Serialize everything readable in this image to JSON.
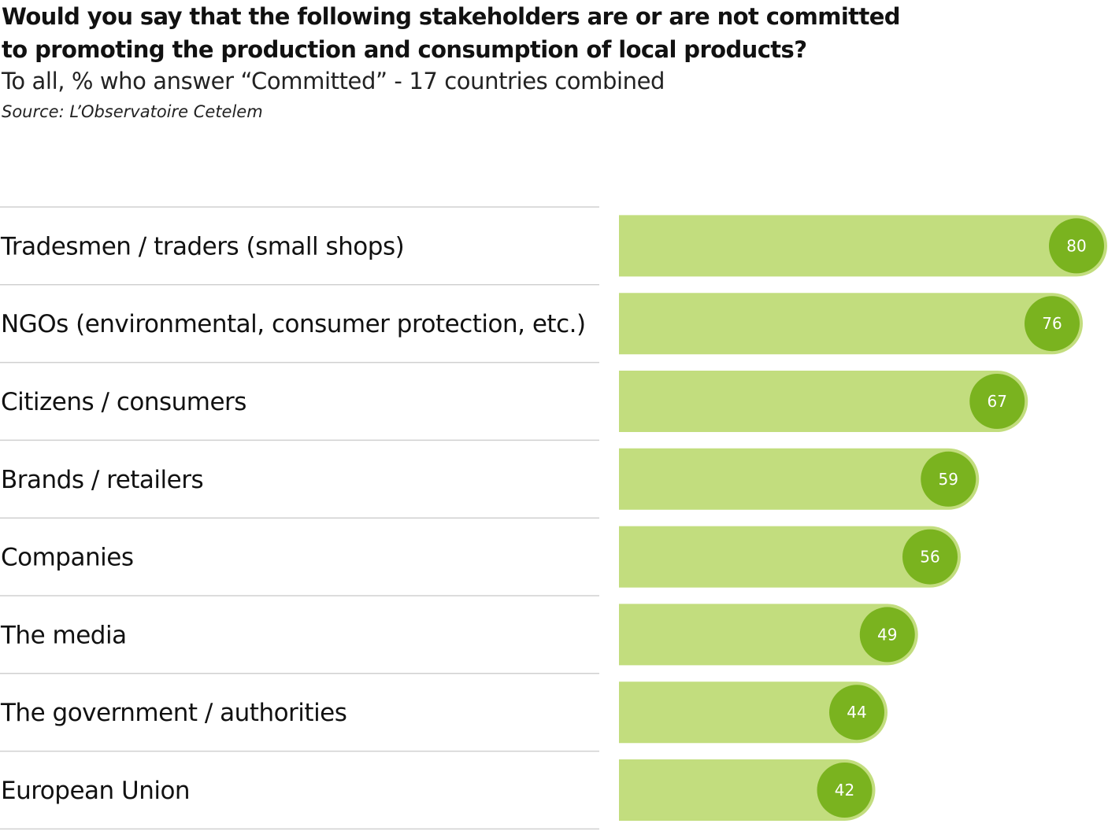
{
  "colors": {
    "bar": "#c2dd7e",
    "bar_cap": "#c2dd7e",
    "badge": "#7ab31f",
    "divider": "#d0d0d0",
    "text": "#111111"
  },
  "chart_data": {
    "type": "bar",
    "orientation": "horizontal",
    "title_lines": [
      "Would you say that the following stakeholders are or are not committed",
      "to promoting the production and consumption of local products?"
    ],
    "subtitle": "To all, % who answer “Committed” - 17 countries combined",
    "source": "Source: L’Observatoire Cetelem",
    "categories": [
      "Tradesmen / traders (small shops)",
      "NGOs (environmental, consumer protection, etc.)",
      "Citizens / consumers",
      "Brands / retailers",
      "Companies",
      "The media",
      "The government / authorities",
      "European Union"
    ],
    "values": [
      80,
      76,
      67,
      59,
      56,
      49,
      44,
      42
    ],
    "xlim": [
      0,
      80
    ],
    "grid": false,
    "legend": "none"
  }
}
